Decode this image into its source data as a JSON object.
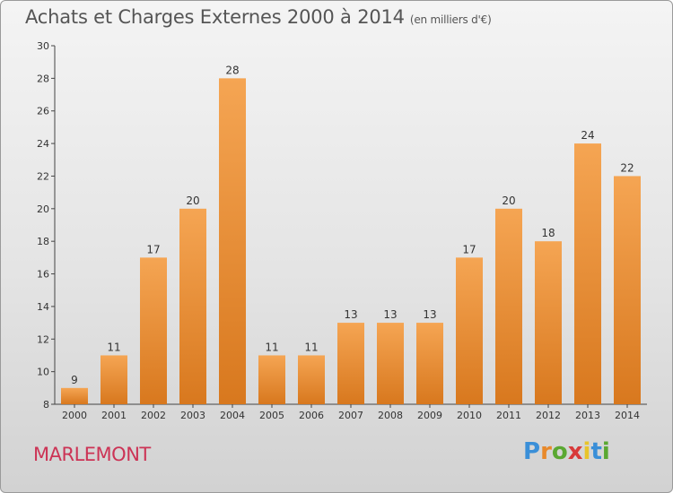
{
  "header": {
    "title": "Achats et Charges Externes 2000 à 2014",
    "subtitle": "(en milliers d'€)"
  },
  "footer": {
    "commune": "MARLEMONT",
    "logo_letters": [
      "P",
      "r",
      "o",
      "x",
      "i",
      "t",
      "i"
    ],
    "logo_colors": [
      "#3a8fd8",
      "#e8892a",
      "#5aa832",
      "#d83a3a",
      "#e8c42a",
      "#3a8fd8",
      "#5aa832"
    ]
  },
  "chart_data": {
    "type": "bar",
    "categories": [
      "2000",
      "2001",
      "2002",
      "2003",
      "2004",
      "2005",
      "2006",
      "2007",
      "2008",
      "2009",
      "2010",
      "2011",
      "2012",
      "2013",
      "2014"
    ],
    "values": [
      9,
      11,
      17,
      20,
      28,
      11,
      11,
      13,
      13,
      13,
      17,
      20,
      18,
      24,
      22
    ],
    "ylim": [
      8,
      30
    ],
    "yticks": [
      8,
      10,
      12,
      14,
      16,
      18,
      20,
      22,
      24,
      26,
      28,
      30
    ],
    "grid": false,
    "bar_color_top": "#f5a553",
    "bar_color_bottom": "#d8781e"
  }
}
